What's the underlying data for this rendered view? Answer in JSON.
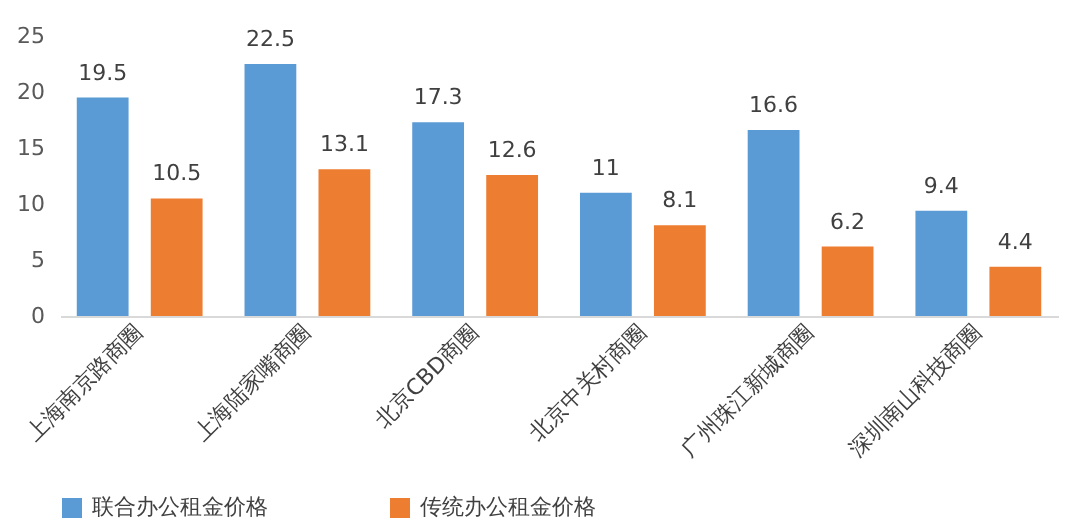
{
  "chart_data": {
    "type": "bar",
    "categories": [
      "上海南京路商圈",
      "上海陆家嘴商圈",
      "北京CBD商圈",
      "北京中关村商圈",
      "广州珠江新城商圈",
      "深圳南山科技商圈"
    ],
    "series": [
      {
        "name": "联合办公租金价格",
        "color": "#5b9bd5",
        "values": [
          19.5,
          22.5,
          17.3,
          11,
          16.6,
          9.4
        ]
      },
      {
        "name": "传统办公租金价格",
        "color": "#ed7d31",
        "values": [
          10.5,
          13.1,
          12.6,
          8.1,
          6.2,
          4.4
        ]
      }
    ],
    "ylim": [
      0,
      25
    ],
    "yticks": [
      0,
      5,
      10,
      15,
      20,
      25
    ],
    "grid": false,
    "legend": "bottom",
    "data_labels": true
  }
}
